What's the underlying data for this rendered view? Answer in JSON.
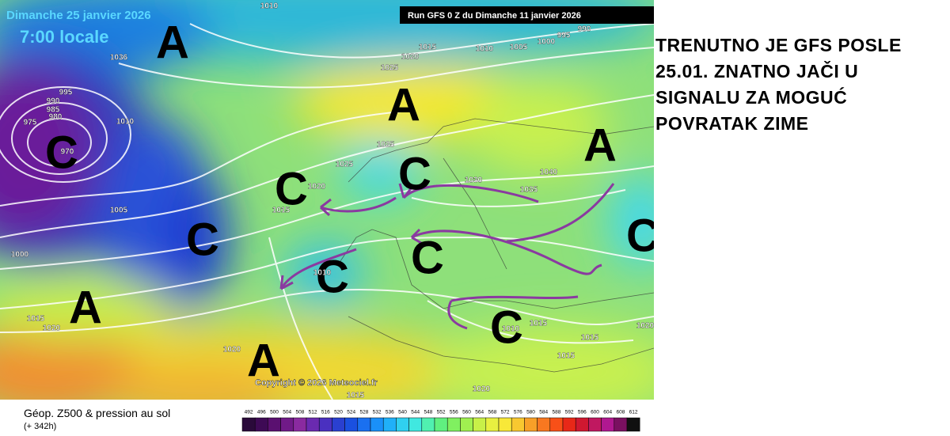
{
  "header": {
    "date": "Dimanche 25 janvier 2026",
    "time": "7:00 locale",
    "run": "Run GFS 0 Z du Dimanche 11 janvier 2026"
  },
  "annotation": [
    "TRENUTNO JE GFS POSLE",
    "25.01. ZNATNO JAČI U",
    "SIGNALU ZA MOGUĆ",
    "POVRATAK ZIME"
  ],
  "pressure_centers": [
    "A",
    "A",
    "A",
    "C",
    "C",
    "C",
    "C",
    "C",
    "C",
    "C",
    "A",
    "A",
    "C"
  ],
  "isobar_labels": [
    1010,
    990,
    995,
    1000,
    1005,
    1010,
    1015,
    1020,
    1025,
    1036,
    995,
    990,
    985,
    980,
    975,
    970,
    1010,
    1025,
    1025,
    1020,
    1015,
    1030,
    1035,
    1040,
    1005,
    1000,
    1010,
    1015,
    1020,
    1020,
    1010,
    1015,
    1015,
    1015,
    1020,
    1020,
    1015
  ],
  "copyright": "Copyright © 2026 Meteociel.fr",
  "footer": {
    "title": "Géop. Z500 & pression au sol",
    "lead": "(+ 342h)"
  },
  "scale": [
    492,
    496,
    500,
    504,
    508,
    512,
    516,
    520,
    524,
    528,
    532,
    536,
    540,
    544,
    548,
    552,
    556,
    560,
    564,
    568,
    572,
    576,
    580,
    584,
    588,
    592,
    596,
    600,
    604,
    608,
    612
  ]
}
